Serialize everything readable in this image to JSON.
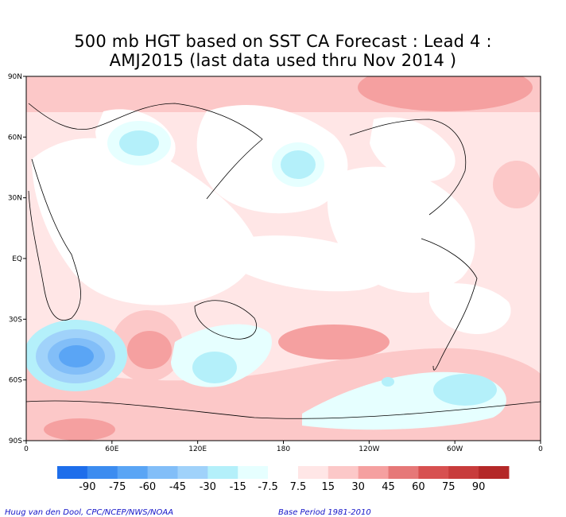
{
  "chart_data": {
    "type": "heatmap",
    "title": "500 mb HGT based on SST CA Forecast : Lead 4 :",
    "subtitle": "AMJ2015 (last data used thru Nov 2014 )",
    "x_ticks": [
      "0",
      "60E",
      "120E",
      "180",
      "120W",
      "60W",
      "0"
    ],
    "y_ticks": [
      "90N",
      "60N",
      "30N",
      "EQ",
      "30S",
      "60S",
      "90S"
    ],
    "colorbar_levels": [
      "-90",
      "-75",
      "-60",
      "-45",
      "-30",
      "-15",
      "-7.5",
      "7.5",
      "15",
      "30",
      "45",
      "60",
      "75",
      "90"
    ],
    "colorbar_colors": [
      "#1e6eeb",
      "#3c8cf0",
      "#5aa5f5",
      "#82bef8",
      "#a0d2fa",
      "#b4f0fa",
      "#e6ffff",
      "#ffffff",
      "#ffe6e6",
      "#fcc8c8",
      "#f5a0a0",
      "#e67878",
      "#d75050",
      "#c83c3c",
      "#b42828"
    ],
    "grid": false,
    "colorbar_position": "bottom"
  },
  "footer": {
    "left": "Huug van den Dool, CPC/NCEP/NWS/NOAA",
    "right": "Base Period 1981-2010"
  }
}
